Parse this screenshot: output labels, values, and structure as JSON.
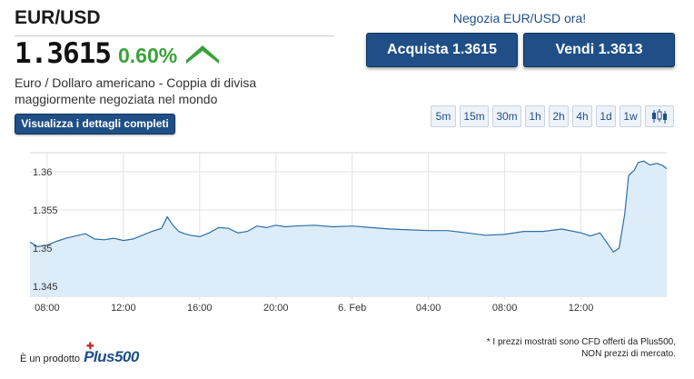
{
  "instrument": {
    "pair": "EUR/USD",
    "price": "1.3615",
    "change": "0.60%",
    "description": "Euro / Dollaro americano - Coppia di divisa maggiormente negoziata nel mondo",
    "details_label": "Visualizza i dettagli completi"
  },
  "trade": {
    "label": "Negozia EUR/USD ora!",
    "buy_label": "Acquista 1.3615",
    "sell_label": "Vendi 1.3613"
  },
  "timeframes": [
    "5m",
    "15m",
    "30m",
    "1h",
    "2h",
    "4h",
    "1d",
    "1w"
  ],
  "colors": {
    "accent": "#1f4f86",
    "positive": "#3aa23a",
    "line": "#2f6fa5",
    "fill": "#dcecf8"
  },
  "chart_data": {
    "type": "area",
    "ylim": [
      1.3437,
      1.3625
    ],
    "y_ticks": [
      "1.36",
      "1.355",
      "1.35",
      "1.345"
    ],
    "y_tick_values": [
      1.36,
      1.355,
      1.35,
      1.345
    ],
    "x_ticks": [
      "08:00",
      "12:00",
      "16:00",
      "20:00",
      "6. Feb",
      "04:00",
      "08:00",
      "12:00"
    ],
    "x_tick_values": [
      1,
      5,
      9,
      13,
      17,
      21,
      25,
      29
    ],
    "xlim": [
      0.1,
      33.5
    ],
    "series": [
      {
        "x": [
          0.1,
          0.5,
          1.0,
          1.5,
          2.0,
          2.5,
          3.0,
          3.5,
          4.0,
          4.5,
          5.0,
          5.5,
          6.0,
          6.5,
          7.0,
          7.3,
          7.6,
          7.9,
          8.2,
          8.5,
          9.0,
          9.5,
          10.0,
          10.5,
          11.0,
          11.5,
          12.0,
          12.5,
          13.0,
          13.5,
          14.0,
          15.0,
          16.0,
          17.0,
          18.0,
          19.0,
          20.0,
          21.0,
          22.0,
          23.0,
          24.0,
          25.0,
          26.0,
          27.0,
          28.0,
          29.0,
          29.5,
          30.0,
          30.4,
          30.7,
          31.0,
          31.3,
          31.5,
          31.8,
          32.0,
          32.3,
          32.6,
          33.0,
          33.3,
          33.5
        ],
        "y": [
          1.3508,
          1.3502,
          1.3504,
          1.3509,
          1.3513,
          1.3516,
          1.3519,
          1.3512,
          1.3511,
          1.3513,
          1.351,
          1.3512,
          1.3517,
          1.3522,
          1.3526,
          1.3541,
          1.353,
          1.3522,
          1.3519,
          1.3517,
          1.3515,
          1.352,
          1.3527,
          1.3526,
          1.352,
          1.3522,
          1.3529,
          1.3527,
          1.353,
          1.3528,
          1.3529,
          1.353,
          1.3528,
          1.3529,
          1.3527,
          1.3525,
          1.3524,
          1.3523,
          1.3523,
          1.352,
          1.3517,
          1.3518,
          1.3522,
          1.3522,
          1.3525,
          1.352,
          1.3516,
          1.352,
          1.3506,
          1.3495,
          1.35,
          1.3545,
          1.3595,
          1.3602,
          1.3612,
          1.3614,
          1.3609,
          1.3611,
          1.3608,
          1.3604
        ]
      }
    ]
  },
  "footer": {
    "prefix": "È un prodotto",
    "brand": "Plus500",
    "note_line1": "* I prezzi mostrati sono CFD offerti da Plus500,",
    "note_line2": "NON prezzi di mercato."
  }
}
